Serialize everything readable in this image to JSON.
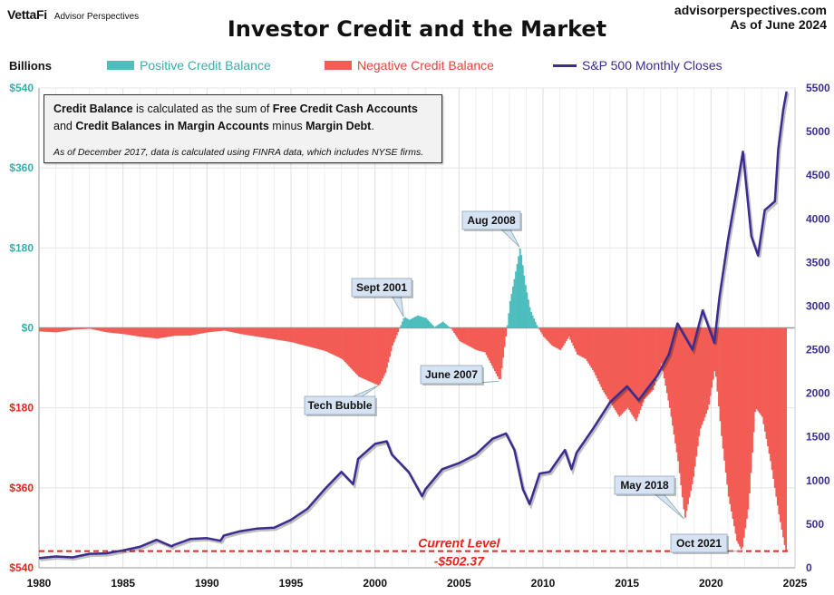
{
  "header": {
    "brand_name": "VettaFi",
    "brand_sub": "Advisor Perspectives",
    "site": "advisorperspectives.com",
    "as_of": "As of June 2024",
    "title": "Investor Credit and the Market",
    "units_label": "Billions"
  },
  "legend": [
    {
      "label": "Positive Credit Balance",
      "color": "#4dbdbd",
      "kind": "bar"
    },
    {
      "label": "Negative Credit Balance",
      "color": "#f25c54",
      "kind": "bar"
    },
    {
      "label": "S&P 500 Monthly Closes",
      "color": "#3b2d8f",
      "kind": "line"
    }
  ],
  "infobox": {
    "line1_bold1": "Credit Balance",
    "line1_text": " is calculated as the sum of ",
    "line1_bold2": "Free Credit Cash Accounts",
    "line2_text1": "and ",
    "line2_bold1": "Credit Balances in Margin Accounts",
    "line2_text2": " minus ",
    "line2_bold2": "Margin Debt",
    "line2_end": ".",
    "note": "As of December 2017, data is calculated using FINRA data, which includes NYSE firms."
  },
  "colors": {
    "positive": "#4dbdbd",
    "negative": "#f25c54",
    "sp500": "#3b2d8f",
    "left_axis_pos": "#3aacac",
    "left_axis_neg": "#e8231b",
    "right_axis": "#3b2d8f"
  },
  "chart_data": {
    "type": "bar+line",
    "title": "Investor Credit and the Market",
    "xlabel": "",
    "ylabel_left": "Billions",
    "ylabel_right": "",
    "x_ticks": [
      "1980",
      "1985",
      "1990",
      "1995",
      "2000",
      "2005",
      "2010",
      "2015",
      "2020",
      "2025"
    ],
    "xlim": [
      1980,
      2025
    ],
    "y_left_ticks": [
      "$540",
      "$360",
      "$180",
      "$0",
      "$180",
      "$360",
      "$540"
    ],
    "y_left_values": [
      540,
      360,
      180,
      0,
      -180,
      -360,
      -540
    ],
    "ylim_left": [
      -540,
      540
    ],
    "y_right_ticks": [
      "5500",
      "5000",
      "4500",
      "4000",
      "3500",
      "3000",
      "2500",
      "2000",
      "1500",
      "1000",
      "500",
      "0"
    ],
    "ylim_right": [
      0,
      5500
    ],
    "grid": true,
    "legend_position": "top",
    "credit_balance_series": {
      "name": "Credit Balance (Billions)",
      "points": [
        [
          1980,
          -8
        ],
        [
          1981,
          -10
        ],
        [
          1982,
          -4
        ],
        [
          1983,
          -2
        ],
        [
          1984,
          -10
        ],
        [
          1985,
          -14
        ],
        [
          1986,
          -20
        ],
        [
          1987,
          -24
        ],
        [
          1988,
          -18
        ],
        [
          1989,
          -17
        ],
        [
          1990,
          -10
        ],
        [
          1991,
          -6
        ],
        [
          1992,
          -14
        ],
        [
          1993,
          -20
        ],
        [
          1994,
          -26
        ],
        [
          1995,
          -32
        ],
        [
          1996,
          -42
        ],
        [
          1997,
          -52
        ],
        [
          1998,
          -70
        ],
        [
          1999,
          -110
        ],
        [
          2000.2,
          -130
        ],
        [
          2000.6,
          -100
        ],
        [
          2001,
          -40
        ],
        [
          2001.7,
          25
        ],
        [
          2002,
          18
        ],
        [
          2002.5,
          28
        ],
        [
          2003,
          22
        ],
        [
          2003.5,
          2
        ],
        [
          2004,
          14
        ],
        [
          2004.5,
          -2
        ],
        [
          2005,
          -30
        ],
        [
          2005.5,
          -40
        ],
        [
          2006,
          -50
        ],
        [
          2006.5,
          -55
        ],
        [
          2007.4,
          -120
        ],
        [
          2007.8,
          -5
        ],
        [
          2008,
          60
        ],
        [
          2008.3,
          120
        ],
        [
          2008.6,
          182
        ],
        [
          2008.9,
          100
        ],
        [
          2009.2,
          40
        ],
        [
          2009.6,
          5
        ],
        [
          2010,
          -20
        ],
        [
          2010.5,
          -40
        ],
        [
          2011,
          -50
        ],
        [
          2011.5,
          -20
        ],
        [
          2012,
          -60
        ],
        [
          2012.5,
          -70
        ],
        [
          2013,
          -100
        ],
        [
          2013.5,
          -140
        ],
        [
          2014,
          -170
        ],
        [
          2014.5,
          -200
        ],
        [
          2015,
          -180
        ],
        [
          2015.5,
          -210
        ],
        [
          2016,
          -160
        ],
        [
          2016.5,
          -140
        ],
        [
          2017,
          -80
        ],
        [
          2017.5,
          -180
        ],
        [
          2018,
          -300
        ],
        [
          2018.4,
          -430
        ],
        [
          2018.9,
          -340
        ],
        [
          2019.3,
          -230
        ],
        [
          2019.8,
          -180
        ],
        [
          2020.2,
          -90
        ],
        [
          2020.6,
          -250
        ],
        [
          2021,
          -380
        ],
        [
          2021.5,
          -480
        ],
        [
          2021.8,
          -502
        ],
        [
          2022.2,
          -400
        ],
        [
          2022.6,
          -180
        ],
        [
          2023,
          -200
        ],
        [
          2023.5,
          -300
        ],
        [
          2024,
          -420
        ],
        [
          2024.4,
          -502.37
        ]
      ]
    },
    "sp500_series": {
      "name": "S&P 500 Monthly Closes",
      "points": [
        [
          1980,
          110
        ],
        [
          1981,
          130
        ],
        [
          1982,
          120
        ],
        [
          1983,
          160
        ],
        [
          1984,
          165
        ],
        [
          1985,
          200
        ],
        [
          1986,
          240
        ],
        [
          1987,
          320
        ],
        [
          1987.9,
          245
        ],
        [
          1988,
          260
        ],
        [
          1989,
          330
        ],
        [
          1990,
          340
        ],
        [
          1990.8,
          310
        ],
        [
          1991,
          370
        ],
        [
          1992,
          420
        ],
        [
          1993,
          450
        ],
        [
          1994,
          460
        ],
        [
          1995,
          550
        ],
        [
          1996,
          680
        ],
        [
          1997,
          900
        ],
        [
          1998,
          1100
        ],
        [
          1998.7,
          960
        ],
        [
          1999,
          1250
        ],
        [
          2000,
          1420
        ],
        [
          2000.7,
          1450
        ],
        [
          2001,
          1300
        ],
        [
          2002,
          1100
        ],
        [
          2002.8,
          820
        ],
        [
          2003,
          900
        ],
        [
          2004,
          1130
        ],
        [
          2005,
          1200
        ],
        [
          2006,
          1300
        ],
        [
          2007,
          1480
        ],
        [
          2007.8,
          1540
        ],
        [
          2008.3,
          1350
        ],
        [
          2008.8,
          900
        ],
        [
          2009.2,
          730
        ],
        [
          2009.8,
          1080
        ],
        [
          2010.4,
          1100
        ],
        [
          2011.3,
          1350
        ],
        [
          2011.7,
          1130
        ],
        [
          2012,
          1320
        ],
        [
          2013,
          1600
        ],
        [
          2014,
          1900
        ],
        [
          2015,
          2080
        ],
        [
          2015.7,
          1920
        ],
        [
          2016,
          2000
        ],
        [
          2016.8,
          2200
        ],
        [
          2017.5,
          2450
        ],
        [
          2018,
          2800
        ],
        [
          2018.9,
          2500
        ],
        [
          2019.5,
          2950
        ],
        [
          2020.2,
          2580
        ],
        [
          2020.5,
          3100
        ],
        [
          2021,
          3750
        ],
        [
          2021.5,
          4300
        ],
        [
          2021.9,
          4770
        ],
        [
          2022.4,
          3800
        ],
        [
          2022.8,
          3580
        ],
        [
          2023.2,
          4100
        ],
        [
          2023.8,
          4200
        ],
        [
          2024,
          4800
        ],
        [
          2024.3,
          5250
        ],
        [
          2024.5,
          5460
        ]
      ]
    },
    "annotations": [
      {
        "label": "Tech Bubble",
        "x": 2000.2,
        "y": -130
      },
      {
        "label": "Sept 2001",
        "x": 2001.7,
        "y": 25
      },
      {
        "label": "June 2007",
        "x": 2007.4,
        "y": -120
      },
      {
        "label": "Aug 2008",
        "x": 2008.6,
        "y": 182
      },
      {
        "label": "May 2018",
        "x": 2018.4,
        "y": -430
      },
      {
        "label": "Oct 2021",
        "x": 2021.8,
        "y": -502
      },
      {
        "label": "Current Level",
        "value_label": "-$502.37",
        "y": -502.37
      }
    ]
  }
}
